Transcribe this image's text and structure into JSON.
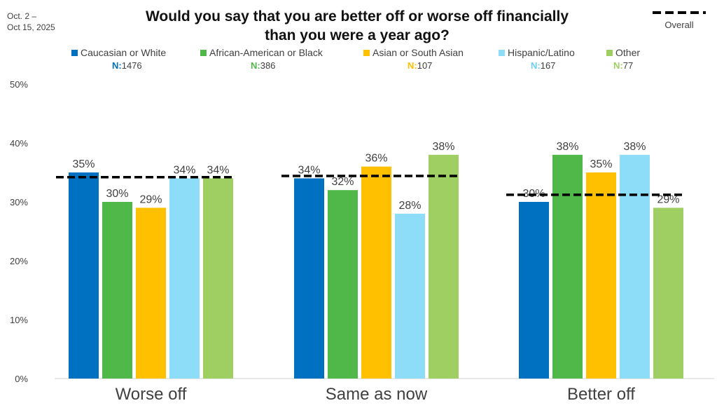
{
  "date_range": [
    "Oct. 2 –",
    "Oct 15, 2025"
  ],
  "overall_legend_label": "Overall",
  "n_prefix": "N:",
  "chart_data": {
    "type": "bar",
    "title": "Would you say that you are better off or worse off financially than you were a year ago?",
    "title_lines": [
      "Would you say that you are better off or worse off financially",
      "than you were a year ago?"
    ],
    "categories": [
      "Worse off",
      "Same as now",
      "Better off"
    ],
    "series": [
      {
        "name": "Caucasian or White",
        "n": "1476",
        "color": "#0070C0",
        "n_color": "#0070C0",
        "values": [
          35,
          34,
          30
        ]
      },
      {
        "name": "African-American or Black",
        "n": "386",
        "color": "#50B848",
        "n_color": "#50B848",
        "values": [
          30,
          32,
          38
        ]
      },
      {
        "name": "Asian or South Asian",
        "n": "107",
        "color": "#FFC000",
        "n_color": "#FFC000",
        "values": [
          29,
          36,
          35
        ]
      },
      {
        "name": "Hispanic/Latino",
        "n": "167",
        "color": "#8DDCF8",
        "n_color": "#6CCFF6",
        "values": [
          34,
          28,
          38
        ]
      },
      {
        "name": "Other",
        "n": "77",
        "color": "#9FCF63",
        "n_color": "#9FCF63",
        "values": [
          34,
          38,
          29
        ]
      }
    ],
    "overall": {
      "name": "Overall",
      "values": [
        34.2,
        34.4,
        31.2
      ],
      "color": "#000000",
      "style": "dashed"
    },
    "data_labels": [
      [
        "35%",
        "30%",
        "29%",
        "34%",
        "34%"
      ],
      [
        "34%",
        "32%",
        "36%",
        "28%",
        "38%"
      ],
      [
        "30%",
        "38%",
        "35%",
        "38%",
        "29%"
      ]
    ],
    "yticks": [
      "0%",
      "10%",
      "20%",
      "30%",
      "40%",
      "50%"
    ],
    "ytick_values": [
      0,
      10,
      20,
      30,
      40,
      50
    ],
    "ylim": [
      0,
      50
    ],
    "grid": false,
    "legend_position": "top"
  }
}
